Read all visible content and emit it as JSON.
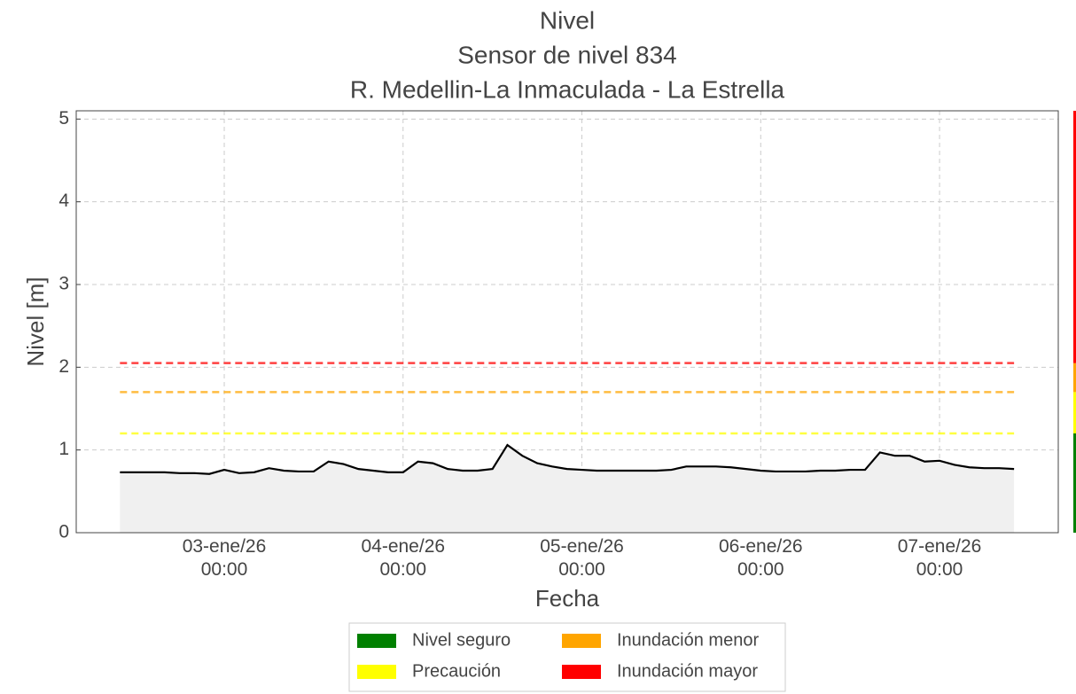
{
  "chart_data": {
    "type": "line",
    "title": [
      "Nivel",
      "Sensor de nivel 834",
      "R. Medellin-La Inmaculada  - La Estrella"
    ],
    "xlabel": "Fecha",
    "ylabel": "Nivel [m]",
    "x": [
      "2026-01-02 10:00",
      "2026-01-02 12:00",
      "2026-01-02 14:00",
      "2026-01-02 16:00",
      "2026-01-02 18:00",
      "2026-01-02 20:00",
      "2026-01-02 22:00",
      "2026-01-03 00:00",
      "2026-01-03 02:00",
      "2026-01-03 04:00",
      "2026-01-03 06:00",
      "2026-01-03 08:00",
      "2026-01-03 10:00",
      "2026-01-03 12:00",
      "2026-01-03 14:00",
      "2026-01-03 16:00",
      "2026-01-03 18:00",
      "2026-01-03 20:00",
      "2026-01-03 22:00",
      "2026-01-04 00:00",
      "2026-01-04 02:00",
      "2026-01-04 04:00",
      "2026-01-04 06:00",
      "2026-01-04 08:00",
      "2026-01-04 10:00",
      "2026-01-04 12:00",
      "2026-01-04 14:00",
      "2026-01-04 16:00",
      "2026-01-04 18:00",
      "2026-01-04 20:00",
      "2026-01-04 22:00",
      "2026-01-05 00:00",
      "2026-01-05 02:00",
      "2026-01-05 04:00",
      "2026-01-05 06:00",
      "2026-01-05 08:00",
      "2026-01-05 10:00",
      "2026-01-05 12:00",
      "2026-01-05 14:00",
      "2026-01-05 16:00",
      "2026-01-05 18:00",
      "2026-01-05 20:00",
      "2026-01-05 22:00",
      "2026-01-06 00:00",
      "2026-01-06 02:00",
      "2026-01-06 04:00",
      "2026-01-06 06:00",
      "2026-01-06 08:00",
      "2026-01-06 10:00",
      "2026-01-06 12:00",
      "2026-01-06 14:00",
      "2026-01-06 16:00",
      "2026-01-06 18:00",
      "2026-01-06 20:00",
      "2026-01-06 22:00",
      "2026-01-07 00:00",
      "2026-01-07 02:00",
      "2026-01-07 04:00",
      "2026-01-07 06:00",
      "2026-01-07 08:00",
      "2026-01-07 10:00"
    ],
    "series": [
      {
        "name": "Nivel",
        "color": "#000000",
        "fill": "#f0f0f0",
        "values": [
          0.73,
          0.73,
          0.73,
          0.73,
          0.72,
          0.72,
          0.71,
          0.76,
          0.72,
          0.73,
          0.78,
          0.75,
          0.74,
          0.74,
          0.86,
          0.83,
          0.77,
          0.75,
          0.73,
          0.73,
          0.86,
          0.84,
          0.77,
          0.75,
          0.75,
          0.77,
          1.06,
          0.93,
          0.84,
          0.8,
          0.77,
          0.76,
          0.75,
          0.75,
          0.75,
          0.75,
          0.75,
          0.76,
          0.8,
          0.8,
          0.8,
          0.79,
          0.77,
          0.75,
          0.74,
          0.74,
          0.74,
          0.75,
          0.75,
          0.76,
          0.76,
          0.97,
          0.93,
          0.93,
          0.86,
          0.87,
          0.82,
          0.79,
          0.78,
          0.78,
          0.77
        ]
      }
    ],
    "levels": [
      {
        "name": "Nivel seguro",
        "color": "#008000"
      },
      {
        "name": "Precaución",
        "color": "#ffff00"
      },
      {
        "name": "Inundación menor",
        "color": "#ffa500"
      },
      {
        "name": "Inundación mayor",
        "color": "#ff0000"
      }
    ],
    "thresholds": [
      1.2,
      1.7,
      2.05
    ],
    "xlim": [
      "2026-01-02 04:08",
      "2026-01-07 15:56"
    ],
    "xticks": [
      {
        "value": "2026-01-03 00:00",
        "label": "03-ene/26\n00:00"
      },
      {
        "value": "2026-01-04 00:00",
        "label": "04-ene/26\n00:00"
      },
      {
        "value": "2026-01-05 00:00",
        "label": "05-ene/26\n00:00"
      },
      {
        "value": "2026-01-06 00:00",
        "label": "06-ene/26\n00:00"
      },
      {
        "value": "2026-01-07 00:00",
        "label": "07-ene/26\n00:00"
      }
    ],
    "ylim": [
      0,
      5.1
    ],
    "yticks": [
      0,
      1,
      2,
      3,
      4,
      5
    ],
    "grid": true
  }
}
